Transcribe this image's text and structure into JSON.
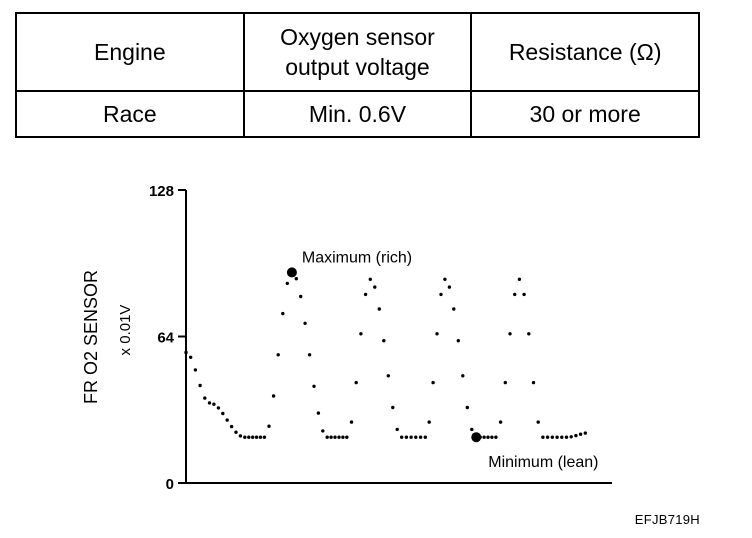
{
  "table": {
    "headers": [
      "Engine",
      "Oxygen sensor output voltage",
      "Resistance (Ω)"
    ],
    "header_lines": [
      [
        "Engine"
      ],
      [
        "Oxygen sensor",
        "output voltage"
      ],
      [
        "Resistance (Ω)"
      ]
    ],
    "rows": [
      [
        "Race",
        "Min.  0.6V",
        "30 or more"
      ]
    ]
  },
  "chart_data": {
    "type": "line",
    "ylabel": "FR O2 SENSOR",
    "ylabel_unit": "x 0.01V",
    "yticks": [
      "128",
      "64",
      "0"
    ],
    "ylim": [
      0,
      128
    ],
    "style": "dotted",
    "annotations": {
      "max": "Maximum (rich)",
      "min": "Minimum (lean)"
    },
    "series": [
      {
        "x": [
          0,
          0.3,
          0.75,
          1.0,
          1.35,
          1.8,
          2.05,
          2.35,
          2.75,
          3.05,
          3.3,
          3.7,
          3.95,
          4.25,
          4.55,
          4.85,
          5.15
        ],
        "values": [
          57,
          35,
          20,
          20,
          92,
          20,
          20,
          89,
          20,
          20,
          89,
          20,
          20,
          89,
          20,
          20,
          22
        ]
      }
    ],
    "marked_points": [
      {
        "x": 1.35,
        "y": 92
      },
      {
        "x": 3.7,
        "y": 20
      }
    ]
  },
  "ref_code": "EFJB719H"
}
